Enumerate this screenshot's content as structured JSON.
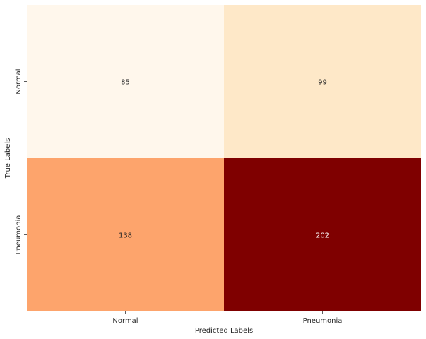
{
  "chart_data": {
    "type": "heatmap",
    "xlabel": "Predicted Labels",
    "ylabel": "True Labels",
    "x_categories": [
      "Normal",
      "Pneumonia"
    ],
    "y_categories": [
      "Normal",
      "Pneumonia"
    ],
    "values": [
      [
        85,
        99
      ],
      [
        138,
        202
      ]
    ],
    "colormap": "OrRd",
    "colorbar": false,
    "cell_colors": [
      [
        "#fff7ec",
        "#fee8c8"
      ],
      [
        "#fda46c",
        "#7f0000"
      ]
    ],
    "annotation_colors": [
      [
        "#262626",
        "#262626"
      ],
      [
        "#262626",
        "#ffffff"
      ]
    ]
  }
}
